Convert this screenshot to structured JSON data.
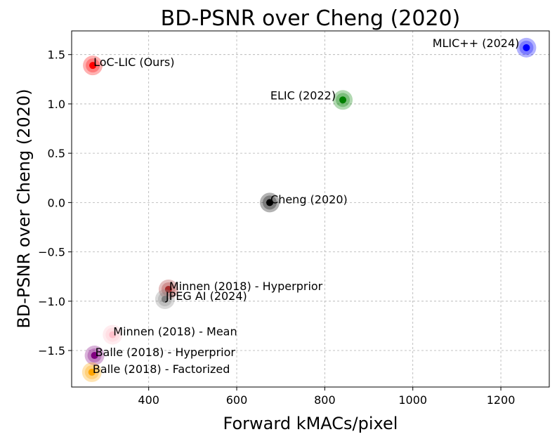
{
  "chart_data": {
    "type": "scatter",
    "title": "BD-PSNR over Cheng (2020)",
    "xlabel": "Forward kMACs/pixel",
    "ylabel": "BD-PSNR over Cheng (2020)",
    "xlim": [
      225,
      1310
    ],
    "ylim": [
      -1.87,
      1.74
    ],
    "xticks": [
      400,
      600,
      800,
      1000,
      1200
    ],
    "yticks": [
      1.5,
      1.0,
      0.5,
      0.0,
      -0.5,
      -1.0,
      -1.5
    ],
    "grid": true,
    "points": [
      {
        "label": "LoC-LIC (Ours)",
        "x": 273,
        "y": 1.39,
        "color": "#ff0000",
        "label_pos": "right-above"
      },
      {
        "label": "MLIC++ (2024)",
        "x": 1258,
        "y": 1.57,
        "color": "#0000ff",
        "label_pos": "left"
      },
      {
        "label": "ELIC (2022)",
        "x": 841,
        "y": 1.04,
        "color": "#008000",
        "label_pos": "left"
      },
      {
        "label": "Cheng (2020)",
        "x": 675,
        "y": 0.0,
        "color": "#000000",
        "label_pos": "right-above"
      },
      {
        "label": "Minnen (2018) - Hyperprior",
        "x": 445,
        "y": -0.88,
        "color": "#a52a2a",
        "label_pos": "right-above"
      },
      {
        "label": "JPEG AI (2024)",
        "x": 437,
        "y": -0.98,
        "color": "#808080",
        "label_pos": "right-above"
      },
      {
        "label": "Minnen (2018) - Mean",
        "x": 318,
        "y": -1.34,
        "color": "#ffc0cb",
        "label_pos": "right-above"
      },
      {
        "label": "Balle (2018) - Hyperprior",
        "x": 277,
        "y": -1.55,
        "color": "#800080",
        "label_pos": "right-above"
      },
      {
        "label": "Balle (2018) - Factorized",
        "x": 271,
        "y": -1.72,
        "color": "#ffa500",
        "label_pos": "right-above"
      }
    ]
  }
}
